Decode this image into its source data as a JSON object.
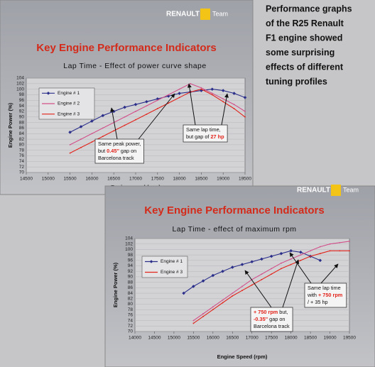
{
  "caption": [
    "Performance graphs",
    "of the R25 Renault",
    "F1 engine showed",
    "some surprising",
    "effects of different",
    "tuning profiles"
  ],
  "chart_data": [
    {
      "type": "line",
      "brand": "RENAULT",
      "brand_suffix": "Team",
      "title": "Key Engine Performance Indicators",
      "subtitle": "Lap Time - Effect of power curve shape",
      "xlabel": "Engine speed (rpm)",
      "ylabel": "Engine Power (%)",
      "xlim": [
        14500,
        19500
      ],
      "xticks": [
        14500,
        15000,
        15500,
        16000,
        16500,
        17000,
        17500,
        18000,
        18500,
        19000,
        19500
      ],
      "ylim": [
        70,
        104
      ],
      "yticks": [
        70,
        72,
        74,
        76,
        78,
        80,
        82,
        84,
        86,
        88,
        90,
        92,
        94,
        96,
        98,
        100,
        102,
        104
      ],
      "grid": true,
      "series": [
        {
          "name": "Engine # 1",
          "color": "#2b2f8a",
          "marker": "diamond",
          "x": [
            15500,
            15750,
            16000,
            16250,
            16500,
            16750,
            17000,
            17250,
            17500,
            17750,
            18000,
            18250,
            18500,
            18750,
            19000,
            19250,
            19500
          ],
          "values": [
            84.5,
            86.5,
            88.5,
            90.5,
            92,
            93.5,
            94.5,
            95.5,
            96.5,
            97.5,
            98.5,
            99,
            99.5,
            100,
            99.5,
            98.5,
            97
          ]
        },
        {
          "name": "Engine # 2",
          "color": "#d2508a",
          "x": [
            15500,
            15750,
            16000,
            16250,
            16500,
            16750,
            17000,
            17250,
            17500,
            17750,
            18000,
            18250,
            18500,
            18750,
            19000,
            19250,
            19500
          ],
          "values": [
            80,
            82,
            84,
            86,
            88,
            90,
            92,
            94,
            96,
            98,
            100,
            102,
            100.5,
            98.5,
            96.5,
            94.5,
            92
          ]
        },
        {
          "name": "Engine # 3",
          "color": "#e2231a",
          "x": [
            15500,
            15750,
            16000,
            16250,
            16500,
            16750,
            17000,
            17250,
            17500,
            17750,
            18000,
            18250,
            18500,
            18750,
            19000,
            19250,
            19500
          ],
          "values": [
            77,
            79,
            81,
            83,
            85,
            87,
            89,
            91,
            93,
            95,
            97,
            99,
            100,
            98,
            95.5,
            93,
            90
          ]
        }
      ],
      "annotations": [
        {
          "lines": [
            [
              {
                "text": "Same peak power,"
              }
            ],
            [
              {
                "text": "but "
              },
              {
                "text": "0.45''",
                "color": "#e2231a"
              },
              {
                "text": " gap on"
              }
            ],
            [
              {
                "text": "Barcelona track"
              }
            ]
          ]
        },
        {
          "lines": [
            [
              {
                "text": "Same lap time,"
              }
            ],
            [
              {
                "text": "but gap of "
              },
              {
                "text": "27 hp",
                "color": "#e2231a"
              }
            ]
          ]
        }
      ]
    },
    {
      "type": "line",
      "brand": "RENAULT",
      "brand_suffix": "Team",
      "title": "Key Engine Performance Indicators",
      "subtitle": "Lap Time - effect of maximum rpm",
      "xlabel": "Engine Speed (rpm)",
      "ylabel": "Engine Power (%)",
      "xlim": [
        14000,
        19500
      ],
      "xticks": [
        14000,
        14500,
        15000,
        15500,
        16000,
        16500,
        17000,
        17500,
        18000,
        18500,
        19000,
        19500
      ],
      "ylim": [
        70,
        104
      ],
      "yticks": [
        70,
        72,
        74,
        76,
        78,
        80,
        82,
        84,
        86,
        88,
        90,
        92,
        94,
        96,
        98,
        100,
        102,
        104
      ],
      "grid": true,
      "series": [
        {
          "name": "Engine # 1",
          "color": "#2b2f8a",
          "marker": "diamond",
          "x": [
            15250,
            15500,
            15750,
            16000,
            16250,
            16500,
            16750,
            17000,
            17250,
            17500,
            17750,
            18000,
            18250,
            18500,
            18750
          ],
          "values": [
            84,
            86.5,
            88.5,
            90.5,
            92,
            93.5,
            94.5,
            95.5,
            96.5,
            97.5,
            98.5,
            99.5,
            99,
            97.5,
            96
          ]
        },
        {
          "name": "Engine # 3",
          "color": "#e2231a",
          "x": [
            15500,
            15750,
            16000,
            16250,
            16500,
            16750,
            17000,
            17250,
            17500,
            17750,
            18000,
            18250,
            18500,
            18750,
            19000,
            19250,
            19500
          ],
          "values": [
            73,
            75.5,
            78,
            80.5,
            83,
            85,
            87,
            89,
            91,
            93,
            94.5,
            96,
            97.5,
            98.5,
            99.5,
            99.5,
            99.5
          ]
        },
        {
          "name": null,
          "color": "#d2508a",
          "x": [
            15500,
            15750,
            16000,
            16250,
            16500,
            16750,
            17000,
            17250,
            17500,
            17750,
            18000,
            18250,
            18500,
            18750,
            19000,
            19250,
            19500
          ],
          "values": [
            74,
            76.5,
            79,
            81.5,
            84,
            86.5,
            89,
            91,
            93,
            95,
            96.5,
            98,
            99.5,
            101,
            102,
            102.5,
            103
          ]
        }
      ],
      "annotations": [
        {
          "lines": [
            [
              {
                "text": "+ 750 rpm",
                "color": "#e2231a"
              },
              {
                "text": " but,"
              }
            ],
            [
              {
                "text": "-0.35''",
                "color": "#e2231a"
              },
              {
                "text": " gap on"
              }
            ],
            [
              {
                "text": "Barcelona track"
              }
            ]
          ]
        },
        {
          "lines": [
            [
              {
                "text": "Same lap time"
              }
            ],
            [
              {
                "text": "with "
              },
              {
                "text": "+ 750 rpm",
                "color": "#e2231a"
              }
            ],
            [
              {
                "text": "/ + 35 hp"
              }
            ]
          ]
        }
      ]
    }
  ]
}
